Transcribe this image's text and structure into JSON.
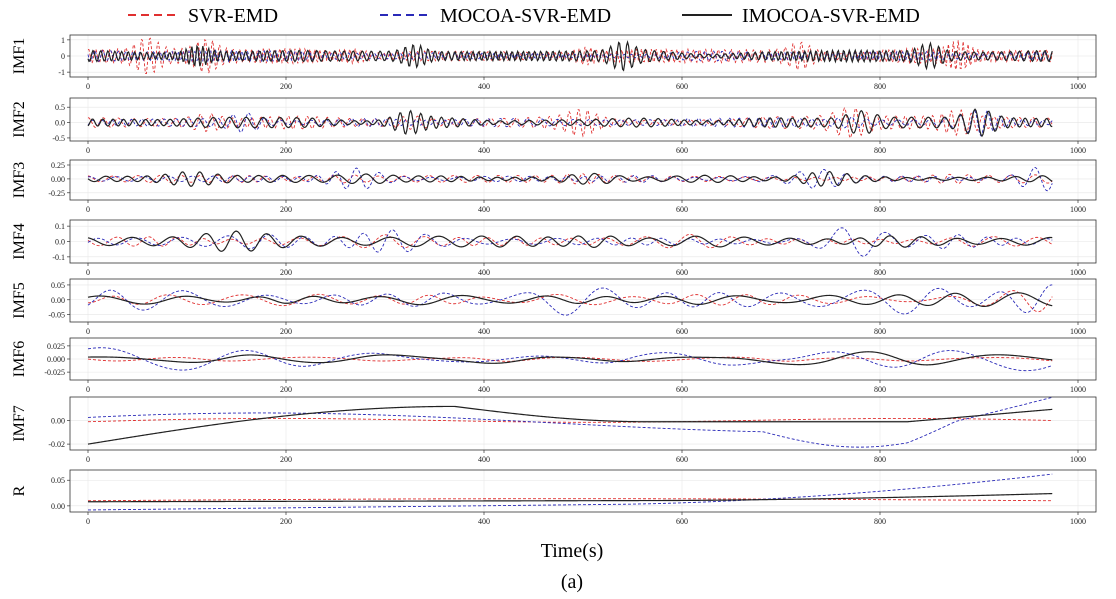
{
  "chart_data": {
    "type": "line",
    "xlabel": "Time(s)",
    "caption": "(a)",
    "xlim": [
      0,
      1000
    ],
    "x_ticks": [
      0,
      200,
      400,
      600,
      800,
      1000
    ],
    "x_tick_labels": [
      "0",
      "200",
      "400",
      "600",
      "800",
      "1000"
    ],
    "n_points": 975,
    "legend": {
      "placement": "top",
      "entries": [
        {
          "name": "SVR-EMD",
          "color": "#e03030",
          "dash": "dashed"
        },
        {
          "name": "MOCOA-SVR-EMD",
          "color": "#2a2ab8",
          "dash": "dashed"
        },
        {
          "name": "IMOCOA-SVR-EMD",
          "color": "#222222",
          "dash": "solid"
        }
      ]
    },
    "grid": true,
    "panels": [
      {
        "label": "IMF1",
        "ylim": [
          -1.3,
          1.3
        ],
        "y_ticks": [
          -1,
          0,
          1
        ],
        "y_tick_labels": [
          "-1",
          "0",
          "1"
        ]
      },
      {
        "label": "IMF2",
        "ylim": [
          -0.6,
          0.8
        ],
        "y_ticks": [
          -0.5,
          0,
          0.5
        ],
        "y_tick_labels": [
          "-0.5",
          "0.0",
          "0.5"
        ]
      },
      {
        "label": "IMF3",
        "ylim": [
          -0.38,
          0.34
        ],
        "y_ticks": [
          -0.25,
          0,
          0.25
        ],
        "y_tick_labels": [
          "-0.25",
          "0.00",
          "0.25"
        ]
      },
      {
        "label": "IMF4",
        "ylim": [
          -0.14,
          0.14
        ],
        "y_ticks": [
          -0.1,
          0,
          0.1
        ],
        "y_tick_labels": [
          "-0.1",
          "0.0",
          "0.1"
        ]
      },
      {
        "label": "IMF5",
        "ylim": [
          -0.075,
          0.07
        ],
        "y_ticks": [
          -0.05,
          0,
          0.05
        ],
        "y_tick_labels": [
          "-0.05",
          "0.00",
          "0.05"
        ]
      },
      {
        "label": "IMF6",
        "ylim": [
          -0.04,
          0.04
        ],
        "y_ticks": [
          -0.025,
          0,
          0.025
        ],
        "y_tick_labels": [
          "-0.025",
          "0.000",
          "0.025"
        ]
      },
      {
        "label": "IMF7",
        "ylim": [
          -0.025,
          0.02
        ],
        "y_ticks": [
          -0.02,
          0
        ],
        "y_tick_labels": [
          "-0.02",
          "0.00"
        ]
      },
      {
        "label": "R",
        "ylim": [
          -0.012,
          0.07
        ],
        "y_ticks": [
          0,
          0.05
        ],
        "y_tick_labels": [
          "0.00",
          "0.05"
        ]
      }
    ]
  }
}
